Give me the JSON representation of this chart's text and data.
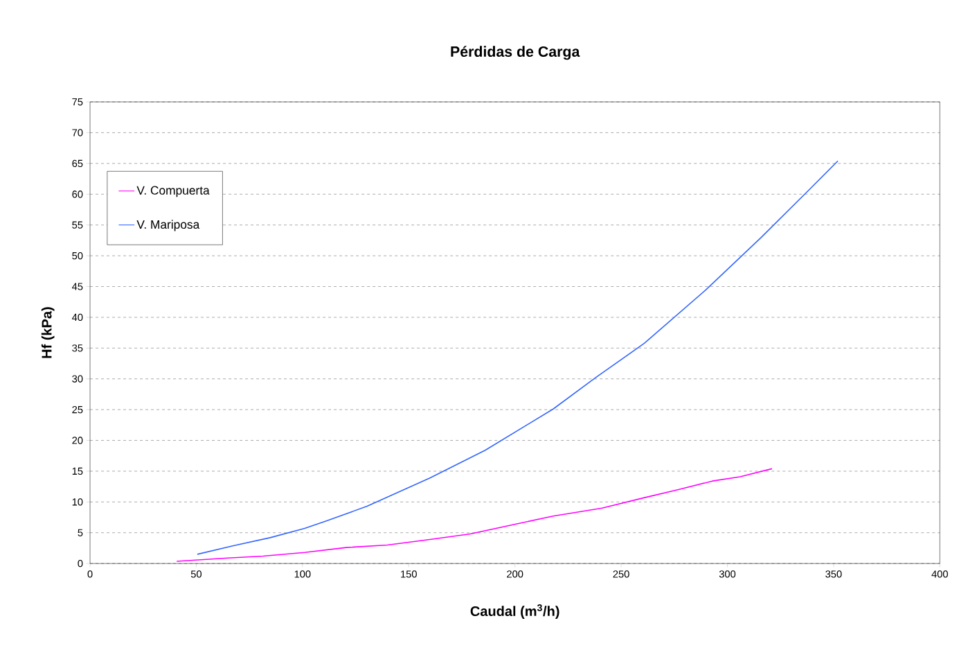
{
  "chart_data": {
    "type": "line",
    "title": "Pérdidas de Carga",
    "xlabel": "Caudal (m$^{3}$/h)",
    "ylabel": "Hf (kPa)",
    "xlim": [
      0,
      400
    ],
    "xticks": [
      0,
      50,
      100,
      150,
      200,
      250,
      300,
      350,
      400
    ],
    "ylim": [
      0,
      75
    ],
    "yticks": [
      0,
      5,
      10,
      15,
      20,
      25,
      30,
      35,
      40,
      45,
      50,
      55,
      60,
      65,
      70,
      75
    ],
    "grid": "y",
    "legend": "top left",
    "marker": "none",
    "line_style": "solid",
    "series": [
      {
        "name": "V. Compuerta",
        "color": "#ff00ff",
        "x": [
          40.8,
          65,
          81.5,
          101,
          120.6,
          140,
          160,
          179,
          199,
          218,
          241,
          261,
          277,
          293,
          306,
          321
        ],
        "values": [
          0.35,
          0.9,
          1.2,
          1.8,
          2.6,
          3.0,
          3.9,
          4.8,
          6.3,
          7.7,
          9.0,
          10.7,
          12.0,
          13.4,
          14.1,
          15.4
        ]
      },
      {
        "name": "V. Mariposa",
        "color": "#3366ff",
        "x": [
          50.5,
          67.5,
          84.8,
          101,
          111,
          130.4,
          160,
          186,
          218,
          238,
          261,
          290,
          316,
          339,
          352
        ],
        "values": [
          1.5,
          2.9,
          4.2,
          5.7,
          6.9,
          9.3,
          13.9,
          18.4,
          25.1,
          30.2,
          35.8,
          44.5,
          53.0,
          60.9,
          65.4
        ]
      }
    ]
  }
}
